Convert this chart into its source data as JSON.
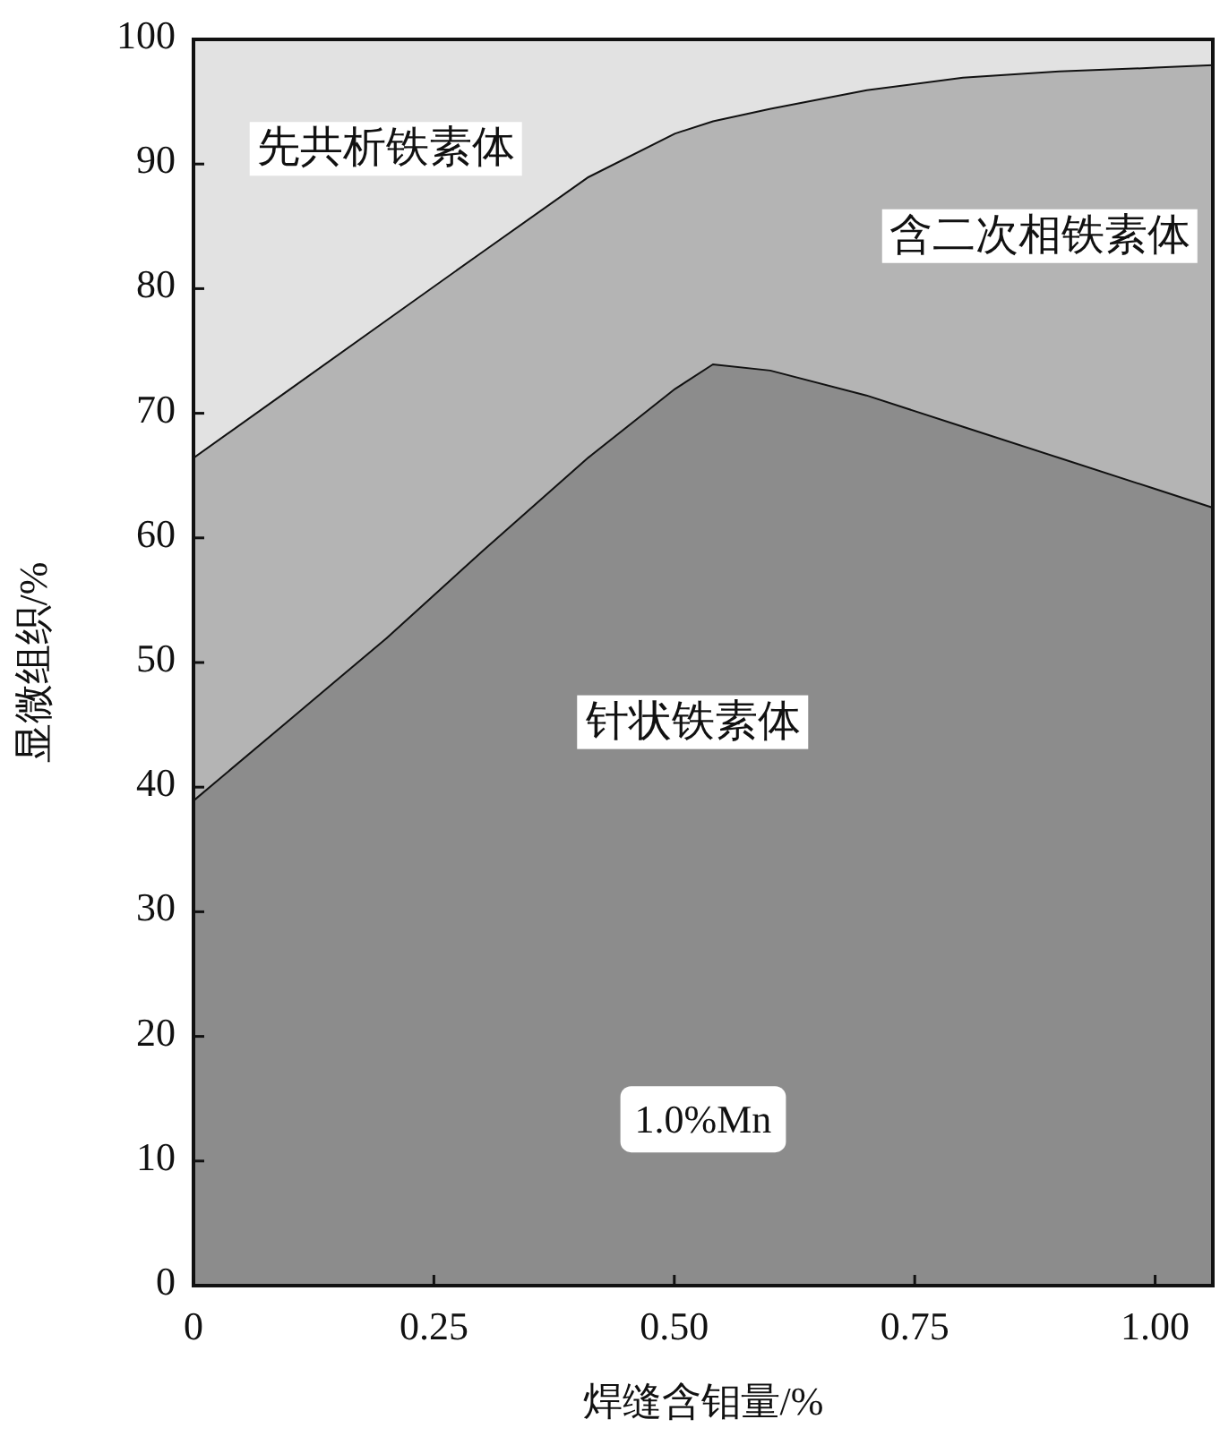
{
  "chart_data": {
    "type": "area",
    "stacked": true,
    "xlabel": "焊缝含钼量/%",
    "ylabel": "显微组织/%",
    "x": [
      0,
      0.1,
      0.2,
      0.3,
      0.41,
      0.5,
      0.54,
      0.6,
      0.7,
      0.8,
      0.9,
      1.0,
      1.06
    ],
    "series": [
      {
        "name": "针状铁素体",
        "color": "#8c8c8c",
        "values": [
          39,
          45.5,
          52,
          59,
          66.5,
          72,
          74,
          73.5,
          71.5,
          69,
          66.5,
          64,
          62.5
        ]
      },
      {
        "name": "含二次相铁素体",
        "color": "#b4b4b4",
        "values": [
          27.5,
          26.5,
          25.5,
          24,
          22.5,
          20.5,
          19.5,
          21,
          24.5,
          28,
          31,
          33.8,
          35.5
        ]
      },
      {
        "name": "先共析铁素体",
        "color": "#e2e2e2",
        "values": [
          33.5,
          28,
          22.5,
          17,
          11,
          7.5,
          6.5,
          5.5,
          4,
          3,
          2.5,
          2.2,
          2
        ]
      }
    ],
    "xlim": [
      0,
      1.06
    ],
    "xticks": [
      0,
      {
        "value": 0.25,
        "label": "0.25"
      },
      {
        "value": 0.5,
        "label": "0.50"
      },
      {
        "value": 0.75,
        "label": "0.75"
      },
      {
        "value": 1,
        "label": "1.00"
      }
    ],
    "ylim": [
      0,
      100
    ],
    "yticks": [
      0,
      10,
      20,
      30,
      40,
      50,
      60,
      70,
      80,
      90,
      100
    ],
    "annotations": [
      "1.0%Mn"
    ],
    "grid": false
  }
}
